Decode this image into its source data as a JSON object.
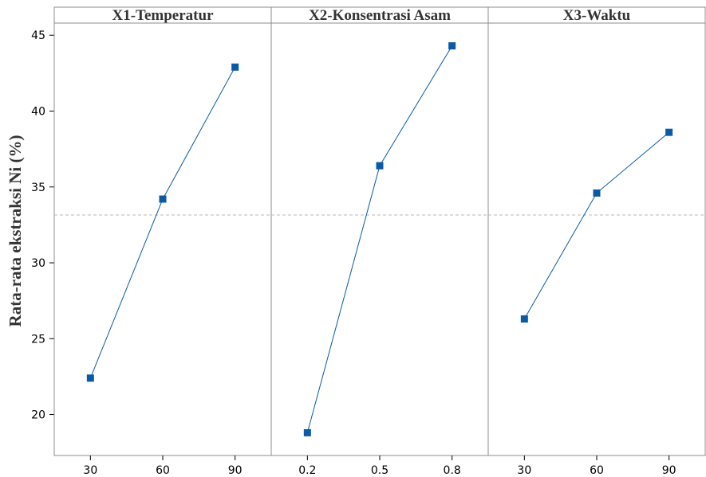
{
  "chart_data": {
    "type": "line",
    "ylabel": "Rata-rata ekstraksi Ni (%)",
    "ylim": [
      17.3,
      45.8
    ],
    "yticks": [
      20,
      25,
      30,
      35,
      40,
      45
    ],
    "reference_line": 33.15,
    "colors": {
      "series": "#0b5aa6",
      "reference": "#b8b8b8",
      "frame": "#8c8c8c"
    },
    "panels": [
      {
        "title": "X1-Temperatur",
        "categories": [
          "30",
          "60",
          "90"
        ],
        "values": [
          22.4,
          34.2,
          42.9
        ]
      },
      {
        "title": "X2-Konsentrasi Asam",
        "categories": [
          "0.2",
          "0.5",
          "0.8"
        ],
        "values": [
          18.8,
          36.4,
          44.3
        ]
      },
      {
        "title": "X3-Waktu",
        "categories": [
          "30",
          "60",
          "90"
        ],
        "values": [
          26.3,
          34.6,
          38.6
        ]
      }
    ]
  }
}
